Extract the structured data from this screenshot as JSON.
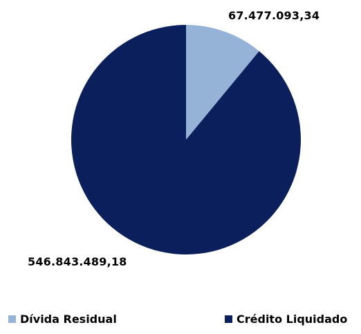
{
  "chart_data": {
    "type": "pie",
    "categories": [
      "Dívida Residual",
      "Crédito Liquidado"
    ],
    "values": [
      67477093.34,
      546843489.18
    ],
    "value_labels": [
      "67.477.093,34",
      "546.843.489,18"
    ],
    "colors": [
      "#95B3D7",
      "#0B1F5C"
    ],
    "legend_position": "bottom",
    "title": ""
  },
  "legend": {
    "items": [
      {
        "label": "Dívida Residual",
        "color": "#95B3D7"
      },
      {
        "label": "Crédito Liquidado",
        "color": "#0B1F5C"
      }
    ]
  }
}
